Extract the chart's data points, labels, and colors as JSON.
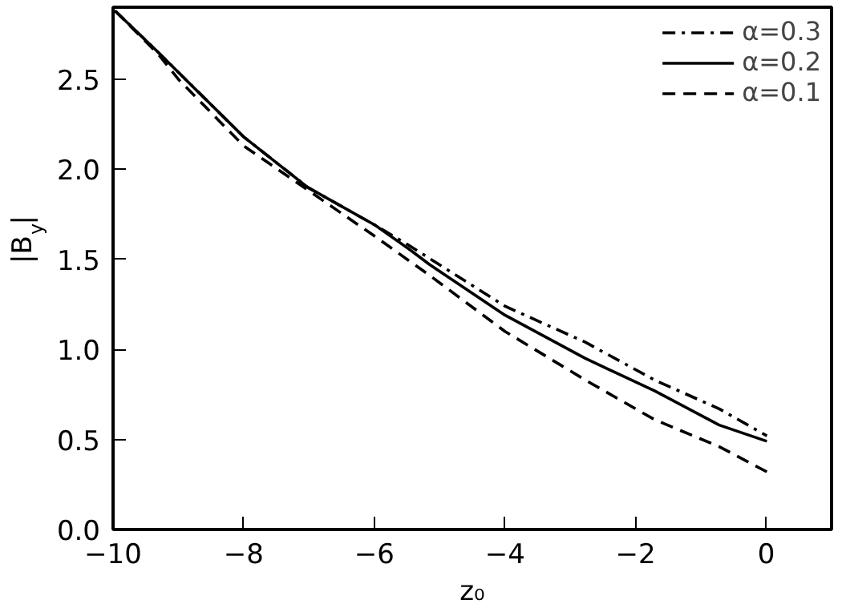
{
  "chart_data": {
    "type": "line",
    "xlabel": "z₀",
    "ylabel": "|B$_{y}$|",
    "xlim": [
      -10,
      1
    ],
    "ylim": [
      0,
      2.9
    ],
    "xticks": [
      {
        "value": -10,
        "label": "−10"
      },
      {
        "value": -8,
        "label": "−8"
      },
      {
        "value": -6,
        "label": "−6"
      },
      {
        "value": -4,
        "label": "−4"
      },
      {
        "value": -2,
        "label": "−2"
      },
      0
    ],
    "yticks": [
      {
        "value": 0,
        "label": "0.0"
      },
      {
        "value": 0.5,
        "label": "0.5"
      },
      {
        "value": 1,
        "label": "1.0"
      },
      {
        "value": 1.5,
        "label": "1.5"
      },
      {
        "value": 2,
        "label": "2.0"
      },
      {
        "value": 2.5,
        "label": "2.5"
      }
    ],
    "grid": false,
    "legend": "top right",
    "series": [
      {
        "name": "α=0.3",
        "color": "#000000",
        "line_style": "dashdot",
        "x": [
          -9.97,
          -9.31,
          -8.0,
          -7.02,
          -5.99,
          -5.48,
          -4.0,
          -2.77,
          -1.71,
          -0.72,
          0.01
        ],
        "values": [
          2.88,
          2.65,
          2.18,
          1.9,
          1.69,
          1.58,
          1.24,
          1.04,
          0.83,
          0.67,
          0.52
        ]
      },
      {
        "name": "α=0.2",
        "color": "#000000",
        "line_style": "solid",
        "x": [
          -9.97,
          -9.31,
          -8.0,
          -7.02,
          -5.99,
          -5.48,
          -5.15,
          -4.0,
          -2.77,
          -1.71,
          -0.72,
          0.01
        ],
        "values": [
          2.88,
          2.65,
          2.18,
          1.9,
          1.69,
          1.56,
          1.47,
          1.19,
          0.95,
          0.77,
          0.58,
          0.49
        ]
      },
      {
        "name": "α=0.1",
        "color": "#000000",
        "line_style": "dashed",
        "x": [
          -9.97,
          -9.31,
          -9.0,
          -8.0,
          -6.0,
          -5.15,
          -4.0,
          -2.77,
          -1.71,
          -0.72,
          0.01
        ],
        "values": [
          2.88,
          2.64,
          2.5,
          2.13,
          1.63,
          1.41,
          1.1,
          0.83,
          0.61,
          0.46,
          0.32
        ]
      }
    ]
  }
}
